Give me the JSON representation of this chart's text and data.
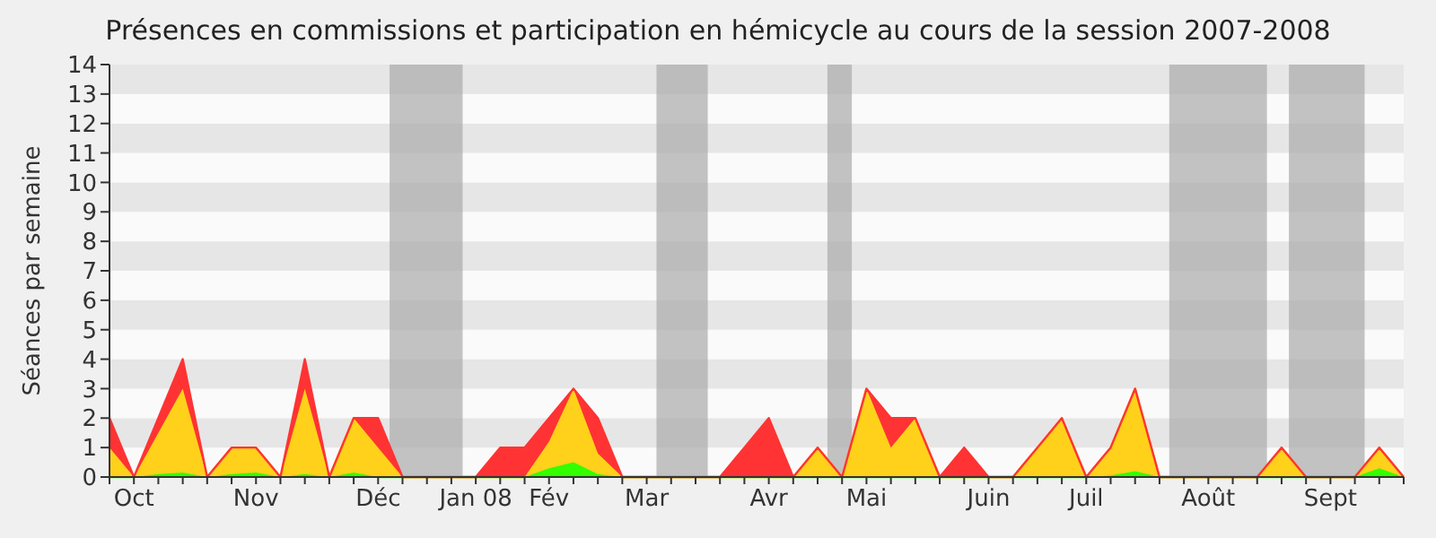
{
  "chart_data": {
    "type": "area",
    "stacked": true,
    "title": "Présences en commissions et participation en hémicycle au cours de la session 2007-2008",
    "ylabel": "Séances par semaine",
    "categories": [
      null,
      "Oct",
      null,
      null,
      null,
      null,
      "Nov",
      null,
      null,
      null,
      null,
      "Déc",
      null,
      null,
      null,
      "Jan 08",
      null,
      null,
      "Fév",
      null,
      null,
      null,
      "Mar",
      null,
      null,
      null,
      null,
      "Avr",
      null,
      null,
      null,
      "Mai",
      null,
      null,
      null,
      null,
      "Juin",
      null,
      null,
      null,
      "Juil",
      null,
      null,
      null,
      null,
      "Août",
      null,
      null,
      null,
      null,
      "Sept",
      null,
      null,
      null
    ],
    "ylim": [
      0,
      14
    ],
    "yticks": [
      0,
      1,
      2,
      3,
      4,
      5,
      6,
      7,
      8,
      9,
      10,
      11,
      12,
      13,
      14
    ],
    "series": [
      {
        "color": "#33ff00",
        "values": [
          0,
          0,
          0.1,
          0.15,
          0,
          0.1,
          0.15,
          0,
          0.1,
          0,
          0.15,
          0,
          0,
          0,
          0,
          0,
          0,
          0,
          0.3,
          0.5,
          0.1,
          0,
          0,
          0,
          0,
          0,
          0,
          0,
          0,
          0,
          0,
          0,
          0,
          0,
          0,
          0,
          0,
          0,
          0,
          0,
          0,
          0.05,
          0.2,
          0,
          0,
          0,
          0,
          0,
          0,
          0,
          0,
          0,
          0.3,
          0
        ]
      },
      {
        "color": "#ffd11a",
        "values": [
          1,
          0,
          1.4,
          2.85,
          0,
          0.9,
          0.85,
          0,
          2.9,
          0,
          1.85,
          1,
          0,
          0,
          0,
          0,
          0,
          0,
          0.9,
          2.5,
          0.7,
          0,
          0,
          0,
          0,
          0,
          0,
          0,
          0,
          1,
          0,
          3,
          1,
          2,
          0,
          0,
          0,
          0,
          1,
          2,
          0,
          0.95,
          2.8,
          0,
          0,
          0,
          0,
          0,
          1,
          0,
          0,
          0,
          0.7,
          0
        ]
      },
      {
        "color": "#ff3333",
        "values": [
          1,
          0,
          0.5,
          1,
          0,
          0,
          0,
          0,
          1,
          0,
          0,
          1,
          0,
          0,
          0,
          0,
          1,
          1,
          0.8,
          0,
          1.2,
          0,
          0,
          0,
          0,
          0,
          1,
          2,
          0,
          0,
          0,
          0,
          1,
          0,
          0,
          1,
          0,
          0,
          0,
          0,
          0,
          0,
          0,
          0,
          0,
          0,
          0,
          0,
          0,
          0,
          0,
          0,
          0,
          0
        ]
      }
    ]
  }
}
